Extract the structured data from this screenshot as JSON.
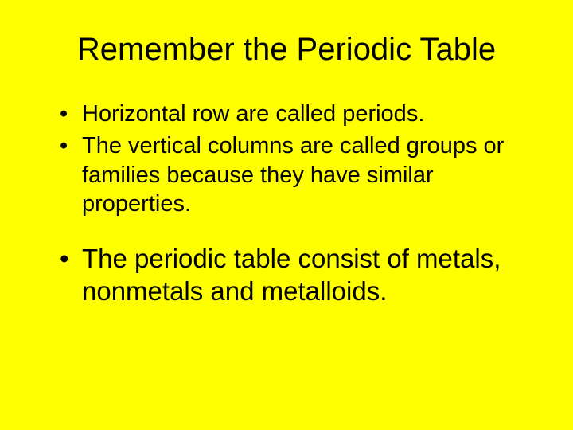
{
  "slide": {
    "background_color": "#ffff00",
    "text_color": "#000000",
    "title": {
      "text": "Remember the Periodic Table",
      "fontsize": 40,
      "font_weight": "normal",
      "align": "center"
    },
    "bullet_groups": [
      {
        "fontsize": 29,
        "items": [
          "Horizontal row are called periods.",
          "The vertical columns are called groups or families because they have similar properties."
        ]
      },
      {
        "fontsize": 33,
        "items": [
          "The periodic table consist of metals, nonmetals and metalloids."
        ]
      }
    ]
  }
}
